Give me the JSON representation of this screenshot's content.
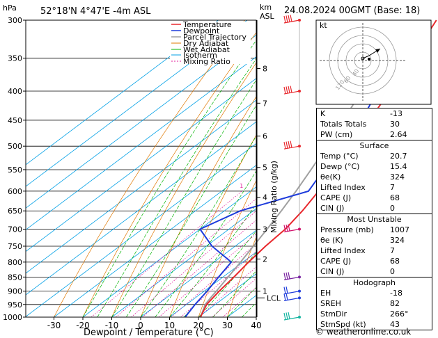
{
  "header": {
    "hpa": "hPa",
    "location": "52°18'N  4°47'E  -4m  ASL",
    "km": "km",
    "asl": "ASL",
    "datetime": "24.08.2024  00GMT  (Base: 18)"
  },
  "legend": {
    "items": [
      {
        "label": "Temperature",
        "color": "#e8282d"
      },
      {
        "label": "Dewpoint",
        "color": "#1e3cdc"
      },
      {
        "label": "Parcel Trajectory",
        "color": "#a0a0a0"
      },
      {
        "label": "Dry Adiabat",
        "color": "#e07800"
      },
      {
        "label": "Wet Adiabat",
        "color": "#00b400"
      },
      {
        "label": "Isotherm",
        "color": "#00a0e6"
      },
      {
        "label": "Mixing Ratio",
        "color": "#e0199a"
      }
    ]
  },
  "chart_data": {
    "type": "line",
    "title": "Skew-T log-P diagram",
    "xlabel": "Dewpoint / Temperature (°C)",
    "ylabel": "hPa",
    "ylabel_right": "Mixing Ratio (g/kg)",
    "x_ticks": [
      -30,
      -20,
      -10,
      0,
      10,
      20,
      30,
      40
    ],
    "xlim": [
      -35,
      40
    ],
    "ylim": [
      1000,
      300
    ],
    "pressure_ticks": [
      300,
      350,
      400,
      450,
      500,
      550,
      600,
      650,
      700,
      750,
      800,
      850,
      900,
      950,
      1000
    ],
    "km_ticks": [
      {
        "km": "1",
        "p": 900
      },
      {
        "km": "2",
        "p": 790
      },
      {
        "km": "3",
        "p": 700
      },
      {
        "km": "4",
        "p": 615
      },
      {
        "km": "5",
        "p": 545
      },
      {
        "km": "6",
        "p": 480
      },
      {
        "km": "7",
        "p": 420
      },
      {
        "km": "8",
        "p": 365
      }
    ],
    "lcl": {
      "label": "LCL",
      "p": 925
    },
    "mixing_ratio_labels": [
      "1",
      "2",
      "3",
      "4",
      "6",
      "8",
      "10",
      "15",
      "20",
      "25"
    ],
    "temperature": {
      "name": "Temperature",
      "p": [
        1000,
        950,
        900,
        850,
        800,
        750,
        700,
        650,
        600,
        550,
        500,
        450,
        400,
        350,
        300
      ],
      "t": [
        20.7,
        17.0,
        15.2,
        13.8,
        12.0,
        10.5,
        9.5,
        7.0,
        3.5,
        -0.5,
        -6.0,
        -11.5,
        -18.0,
        -25.5,
        -34.5
      ]
    },
    "dewpoint": {
      "name": "Dewpoint",
      "p": [
        1000,
        950,
        900,
        850,
        800,
        750,
        700,
        650,
        600,
        550,
        500,
        450,
        400,
        350,
        300
      ],
      "t": [
        15.4,
        13.0,
        11.0,
        8.5,
        6.0,
        -8.0,
        -20.0,
        -14.5,
        0.0,
        -4.5,
        -9.0,
        -14.5,
        -22.0,
        -29.0,
        -38.0
      ]
    },
    "parcel": {
      "name": "Parcel Trajectory",
      "p": [
        1000,
        950,
        925,
        900,
        850,
        800,
        750,
        700,
        650,
        600,
        550,
        500,
        450,
        400,
        350,
        300
      ],
      "t": [
        20.7,
        16.5,
        15.3,
        14.2,
        11.8,
        9.2,
        6.3,
        3.2,
        -0.3,
        -4.3,
        -9.0,
        -14.3,
        -20.5,
        -27.8,
        -36.0,
        -45.0
      ]
    }
  },
  "hodograph": {
    "unit_label": "kt",
    "ring_labels": [
      "40",
      "60",
      "120"
    ]
  },
  "indices": [
    {
      "label": "K",
      "value": "-13"
    },
    {
      "label": "Totals Totals",
      "value": "30"
    },
    {
      "label": "PW (cm)",
      "value": "2.64"
    }
  ],
  "surface": {
    "title": "Surface",
    "rows": [
      {
        "label": "Temp (°C)",
        "value": "20.7"
      },
      {
        "label": "Dewp (°C)",
        "value": "15.4"
      },
      {
        "label": "θe(K)",
        "value": "324"
      },
      {
        "label": "Lifted Index",
        "value": "7"
      },
      {
        "label": "CAPE (J)",
        "value": "68"
      },
      {
        "label": "CIN (J)",
        "value": "0"
      }
    ]
  },
  "most_unstable": {
    "title": "Most Unstable",
    "rows": [
      {
        "label": "Pressure (mb)",
        "value": "1007"
      },
      {
        "label": "θe (K)",
        "value": "324"
      },
      {
        "label": "Lifted Index",
        "value": "7"
      },
      {
        "label": "CAPE (J)",
        "value": "68"
      },
      {
        "label": "CIN (J)",
        "value": "0"
      }
    ]
  },
  "hodograph_table": {
    "title": "Hodograph",
    "rows": [
      {
        "label": "EH",
        "value": "-18"
      },
      {
        "label": "SREH",
        "value": "82"
      },
      {
        "label": "StmDir",
        "value": "266°"
      },
      {
        "label": "StmSpd (kt)",
        "value": "43"
      }
    ]
  },
  "footer": "© weatheronline.co.uk"
}
